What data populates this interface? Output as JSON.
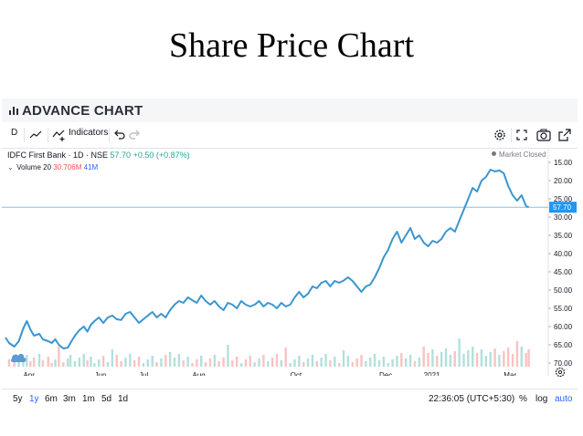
{
  "slide_title": "Share Price Chart",
  "panel": {
    "header_title": "ADVANCE CHART"
  },
  "toolbar": {
    "interval": "D",
    "indicators_label": "Indicators"
  },
  "legend": {
    "symbol": "IDFC First Bank · 1D · NSE",
    "price": "57.70",
    "change": "+0.50 (+0.87%)",
    "volume_label": "Volume 20",
    "volume_value": "30.706M",
    "volume_ma": "41M"
  },
  "market_status": "Market Closed",
  "price_axis": {
    "ticks": [
      "70.00",
      "65.00",
      "60.00",
      "55.00",
      "50.00",
      "45.00",
      "40.00",
      "35.00",
      "30.00",
      "25.00",
      "20.00",
      "15.00"
    ],
    "last_price_label": "57.70"
  },
  "time_axis": {
    "labels": [
      "Apr",
      "Jun",
      "Jul",
      "Aug",
      "Oct",
      "Dec",
      "2021",
      "Mar"
    ]
  },
  "bottom_bar": {
    "ranges": [
      "5y",
      "1y",
      "6m",
      "3m",
      "1m",
      "5d",
      "1d"
    ],
    "active_range": "1y",
    "clock": "22:36:05 (UTC+5:30)",
    "percent": "%",
    "log": "log",
    "auto": "auto"
  },
  "colors": {
    "line": "#3a96cf",
    "up": "#26a69a",
    "down": "#ef5350",
    "accent": "#2962ff",
    "price_label_bg": "#2196f3"
  },
  "chart_data": {
    "type": "line",
    "title": "IDFC First Bank · 1D · NSE",
    "ylim": [
      14,
      72
    ],
    "y_ticks": [
      15,
      20,
      25,
      30,
      35,
      40,
      45,
      50,
      55,
      60,
      65,
      70
    ],
    "x_labels": [
      "Apr",
      "Jun",
      "Jul",
      "Aug",
      "Oct",
      "Dec",
      "2021",
      "Mar"
    ],
    "series": [
      {
        "name": "IDFC First Bank",
        "points": [
          [
            0,
            22
          ],
          [
            0.4,
            20.5
          ],
          [
            1,
            19.5
          ],
          [
            1.5,
            21
          ],
          [
            2,
            24.5
          ],
          [
            2.4,
            26.5
          ],
          [
            2.8,
            24.2
          ],
          [
            3.2,
            22.5
          ],
          [
            3.8,
            23
          ],
          [
            4.2,
            21.5
          ],
          [
            4.8,
            21
          ],
          [
            5.2,
            20.5
          ],
          [
            5.6,
            21.5
          ],
          [
            6,
            20
          ],
          [
            6.5,
            19
          ],
          [
            7,
            19.2
          ],
          [
            7.3,
            20.5
          ],
          [
            7.8,
            22.5
          ],
          [
            8.3,
            24
          ],
          [
            8.8,
            25
          ],
          [
            9.2,
            23.6
          ],
          [
            9.6,
            25.5
          ],
          [
            10,
            26.5
          ],
          [
            10.5,
            27.5
          ],
          [
            11,
            26
          ],
          [
            11.5,
            27.5
          ],
          [
            12,
            28
          ],
          [
            12.5,
            27
          ],
          [
            13,
            26.8
          ],
          [
            13.5,
            28.5
          ],
          [
            14,
            29
          ],
          [
            14.5,
            27.5
          ],
          [
            15,
            26
          ],
          [
            15.5,
            27
          ],
          [
            16,
            28
          ],
          [
            16.5,
            29
          ],
          [
            17,
            27.5
          ],
          [
            17.5,
            28.5
          ],
          [
            18,
            27.5
          ],
          [
            18.5,
            29.5
          ],
          [
            19,
            31
          ],
          [
            19.5,
            32
          ],
          [
            20,
            31.5
          ],
          [
            20.5,
            33
          ],
          [
            21,
            32.2
          ],
          [
            21.5,
            31.5
          ],
          [
            22,
            33.5
          ],
          [
            22.5,
            32
          ],
          [
            23,
            31
          ],
          [
            23.5,
            32
          ],
          [
            24,
            30.5
          ],
          [
            24.5,
            29.5
          ],
          [
            25,
            31.5
          ],
          [
            25.5,
            31
          ],
          [
            26,
            30
          ],
          [
            26.5,
            32
          ],
          [
            27,
            31
          ],
          [
            27.5,
            30.5
          ],
          [
            28,
            31
          ],
          [
            28.5,
            32
          ],
          [
            29,
            30.5
          ],
          [
            29.5,
            31.5
          ],
          [
            30,
            31
          ],
          [
            30.5,
            30
          ],
          [
            31,
            31.5
          ],
          [
            31.5,
            30.5
          ],
          [
            32,
            31
          ],
          [
            32.5,
            33
          ],
          [
            33,
            34.5
          ],
          [
            33.5,
            33
          ],
          [
            34,
            34
          ],
          [
            34.5,
            36
          ],
          [
            35,
            35.5
          ],
          [
            35.5,
            37
          ],
          [
            36,
            37.5
          ],
          [
            36.5,
            36
          ],
          [
            37,
            37.5
          ],
          [
            37.5,
            37
          ],
          [
            38,
            37.6
          ],
          [
            38.5,
            38.5
          ],
          [
            39,
            37.5
          ],
          [
            39.5,
            36
          ],
          [
            40,
            34.5
          ],
          [
            40.5,
            36
          ],
          [
            41,
            36.5
          ],
          [
            41.5,
            38.5
          ],
          [
            42,
            41
          ],
          [
            42.5,
            44
          ],
          [
            43,
            46
          ],
          [
            43.5,
            49
          ],
          [
            44,
            51
          ],
          [
            44.5,
            48
          ],
          [
            45,
            50
          ],
          [
            45.5,
            52
          ],
          [
            46,
            49
          ],
          [
            46.5,
            50
          ],
          [
            47,
            48
          ],
          [
            47.5,
            47
          ],
          [
            48,
            48.5
          ],
          [
            48.5,
            48
          ],
          [
            49,
            49
          ],
          [
            49.5,
            51
          ],
          [
            50,
            52
          ],
          [
            50.5,
            51
          ],
          [
            51,
            54
          ],
          [
            51.5,
            57
          ],
          [
            52,
            60
          ],
          [
            52.5,
            63
          ],
          [
            53,
            62
          ],
          [
            53.5,
            65
          ],
          [
            54,
            66
          ],
          [
            54.5,
            68
          ],
          [
            55,
            67.5
          ],
          [
            55.5,
            67.8
          ],
          [
            56,
            67
          ],
          [
            56.5,
            63.5
          ],
          [
            57,
            61
          ],
          [
            57.5,
            59.5
          ],
          [
            58,
            61
          ],
          [
            58.5,
            58
          ],
          [
            58.8,
            57.7
          ]
        ]
      }
    ],
    "volume": {
      "name": "Volume",
      "last_value": "30.706M",
      "ma_value": "41M"
    }
  }
}
